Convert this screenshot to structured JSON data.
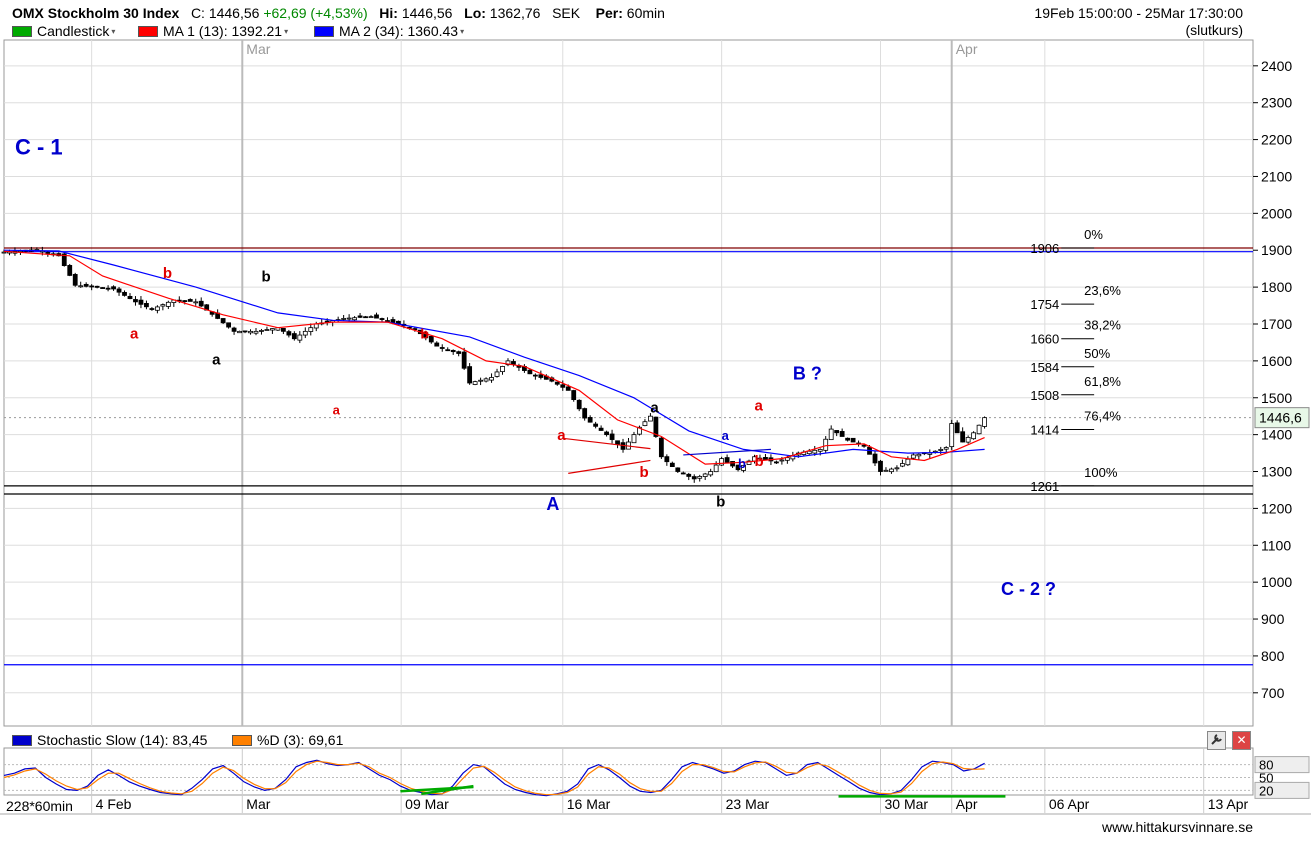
{
  "header": {
    "instrument": "OMX Stockholm 30 Index",
    "close_label": "C:",
    "close": "1446,56",
    "change": "+62,69 (+4,53%)",
    "hi_label": "Hi:",
    "hi": "1446,56",
    "lo_label": "Lo:",
    "lo": "1362,76",
    "currency": "SEK",
    "period_label": "Per:",
    "period": "60min",
    "date_range": "19Feb 15:00:00 - 25Mar 17:30:00",
    "price_basis": "(slutkurs)"
  },
  "legend": {
    "candles": "Candlestick",
    "ma1": "MA 1 (13): 1392.21",
    "ma2": "MA 2 (34): 1360.43",
    "stoch": "Stochastic Slow (14): 83,45",
    "pct_d": "%D (3): 69,61"
  },
  "footer": {
    "bars_label": "228*60min",
    "website": "www.hittakursvinnare.se"
  },
  "colors": {
    "candle_up": "#ffffff",
    "candle_down": "#000000",
    "ma1": "#ff0000",
    "ma2": "#0000ff",
    "stoch": "#0000cc",
    "pct_d": "#ff8000",
    "annotation_blue": "#0000cc",
    "annotation_red": "#e00000",
    "fib_line": "#800000",
    "divergence": "#00aa00",
    "grid": "#dddddd"
  },
  "chart_data": [
    {
      "type": "candlestick",
      "title": "OMX Stockholm 30 Index",
      "y_ticks": [
        700,
        800,
        900,
        1000,
        1100,
        1200,
        1300,
        1400,
        1500,
        1600,
        1700,
        1800,
        1900,
        2000,
        2100,
        2200,
        2300,
        2400
      ],
      "ylim": [
        610,
        2470
      ],
      "x_ticks": [
        "4 Feb",
        "Mar",
        "09 Mar",
        "16 Mar",
        "23 Mar",
        "30 Mar",
        "Apr",
        "06 Apr",
        "13 Apr"
      ],
      "top_month_labels": [
        "Mar",
        "Apr"
      ],
      "last_price_label": "1446,6",
      "grid": true,
      "price_path": [
        {
          "t": 0,
          "v": 1895
        },
        {
          "t": 6,
          "v": 1902
        },
        {
          "t": 10,
          "v": 1885
        },
        {
          "t": 13,
          "v": 1805
        },
        {
          "t": 20,
          "v": 1795
        },
        {
          "t": 24,
          "v": 1760
        },
        {
          "t": 27,
          "v": 1740
        },
        {
          "t": 31,
          "v": 1765
        },
        {
          "t": 35,
          "v": 1760
        },
        {
          "t": 39,
          "v": 1715
        },
        {
          "t": 42,
          "v": 1680
        },
        {
          "t": 46,
          "v": 1680
        },
        {
          "t": 50,
          "v": 1690
        },
        {
          "t": 53,
          "v": 1660
        },
        {
          "t": 57,
          "v": 1700
        },
        {
          "t": 62,
          "v": 1715
        },
        {
          "t": 67,
          "v": 1720
        },
        {
          "t": 72,
          "v": 1700
        },
        {
          "t": 75,
          "v": 1685
        },
        {
          "t": 79,
          "v": 1640
        },
        {
          "t": 83,
          "v": 1620
        },
        {
          "t": 85,
          "v": 1540
        },
        {
          "t": 89,
          "v": 1555
        },
        {
          "t": 92,
          "v": 1600
        },
        {
          "t": 96,
          "v": 1565
        },
        {
          "t": 100,
          "v": 1545
        },
        {
          "t": 103,
          "v": 1520
        },
        {
          "t": 106,
          "v": 1445
        },
        {
          "t": 110,
          "v": 1400
        },
        {
          "t": 113,
          "v": 1360
        },
        {
          "t": 116,
          "v": 1420
        },
        {
          "t": 118,
          "v": 1450
        },
        {
          "t": 120,
          "v": 1340
        },
        {
          "t": 123,
          "v": 1300
        },
        {
          "t": 126,
          "v": 1280
        },
        {
          "t": 129,
          "v": 1300
        },
        {
          "t": 131,
          "v": 1335
        },
        {
          "t": 134,
          "v": 1305
        },
        {
          "t": 137,
          "v": 1340
        },
        {
          "t": 141,
          "v": 1325
        },
        {
          "t": 145,
          "v": 1350
        },
        {
          "t": 149,
          "v": 1360
        },
        {
          "t": 151,
          "v": 1415
        },
        {
          "t": 154,
          "v": 1385
        },
        {
          "t": 157,
          "v": 1370
        },
        {
          "t": 160,
          "v": 1300
        },
        {
          "t": 163,
          "v": 1310
        },
        {
          "t": 166,
          "v": 1345
        },
        {
          "t": 169,
          "v": 1350
        },
        {
          "t": 172,
          "v": 1365
        },
        {
          "t": 173,
          "v": 1430
        },
        {
          "t": 175,
          "v": 1380
        },
        {
          "t": 177,
          "v": 1405
        },
        {
          "t": 179,
          "v": 1446
        }
      ],
      "ma1_path": [
        {
          "t": 0,
          "v": 1897
        },
        {
          "t": 12,
          "v": 1885
        },
        {
          "t": 18,
          "v": 1830
        },
        {
          "t": 30,
          "v": 1770
        },
        {
          "t": 40,
          "v": 1725
        },
        {
          "t": 50,
          "v": 1690
        },
        {
          "t": 60,
          "v": 1705
        },
        {
          "t": 70,
          "v": 1705
        },
        {
          "t": 80,
          "v": 1660
        },
        {
          "t": 88,
          "v": 1600
        },
        {
          "t": 95,
          "v": 1585
        },
        {
          "t": 105,
          "v": 1520
        },
        {
          "t": 112,
          "v": 1440
        },
        {
          "t": 120,
          "v": 1395
        },
        {
          "t": 128,
          "v": 1320
        },
        {
          "t": 135,
          "v": 1325
        },
        {
          "t": 142,
          "v": 1335
        },
        {
          "t": 150,
          "v": 1370
        },
        {
          "t": 157,
          "v": 1375
        },
        {
          "t": 162,
          "v": 1340
        },
        {
          "t": 168,
          "v": 1330
        },
        {
          "t": 174,
          "v": 1360
        },
        {
          "t": 179,
          "v": 1392
        }
      ],
      "ma2_path": [
        {
          "t": 0,
          "v": 1900
        },
        {
          "t": 10,
          "v": 1898
        },
        {
          "t": 20,
          "v": 1860
        },
        {
          "t": 35,
          "v": 1800
        },
        {
          "t": 50,
          "v": 1730
        },
        {
          "t": 60,
          "v": 1710
        },
        {
          "t": 70,
          "v": 1705
        },
        {
          "t": 85,
          "v": 1665
        },
        {
          "t": 95,
          "v": 1610
        },
        {
          "t": 105,
          "v": 1560
        },
        {
          "t": 115,
          "v": 1500
        },
        {
          "t": 125,
          "v": 1410
        },
        {
          "t": 135,
          "v": 1360
        },
        {
          "t": 145,
          "v": 1340
        },
        {
          "t": 155,
          "v": 1360
        },
        {
          "t": 165,
          "v": 1350
        },
        {
          "t": 172,
          "v": 1352
        },
        {
          "t": 179,
          "v": 1360
        }
      ],
      "horizontal_lines": [
        {
          "v": 1906,
          "color": "#800000"
        },
        {
          "v": 1896,
          "color": "#0000ff"
        },
        {
          "v": 1261,
          "color": "#000000"
        },
        {
          "v": 1239,
          "color": "#000000"
        },
        {
          "v": 776,
          "color": "#0000ff"
        }
      ],
      "fibonacci_levels": [
        {
          "value": 1906,
          "value_label": "1906",
          "pct_label": "0%"
        },
        {
          "value": 1754,
          "value_label": "1754",
          "pct_label": "23,6%"
        },
        {
          "value": 1660,
          "value_label": "1660",
          "pct_label": "38,2%"
        },
        {
          "value": 1584,
          "value_label": "1584",
          "pct_label": "50%"
        },
        {
          "value": 1508,
          "value_label": "1508",
          "pct_label": "61,8%"
        },
        {
          "value": 1414,
          "value_label": "1414",
          "pct_label": "76,4%"
        },
        {
          "value": 1261,
          "value_label": "1261",
          "pct_label": "100%"
        }
      ],
      "annotations": [
        {
          "text": "C - 1",
          "t": 2,
          "v": 2160,
          "color": "#0000cc",
          "size": 22
        },
        {
          "text": "b",
          "t": 29,
          "v": 1825,
          "color": "#e00000",
          "size": 15
        },
        {
          "text": "a",
          "t": 23,
          "v": 1660,
          "color": "#e00000",
          "size": 15
        },
        {
          "text": "b",
          "t": 47,
          "v": 1815,
          "color": "#000000",
          "size": 15
        },
        {
          "text": "a",
          "t": 38,
          "v": 1590,
          "color": "#000000",
          "size": 15
        },
        {
          "text": "b",
          "t": 76,
          "v": 1660,
          "color": "#e00000",
          "size": 14
        },
        {
          "text": "a",
          "t": 60,
          "v": 1455,
          "color": "#e00000",
          "size": 13
        },
        {
          "text": "a",
          "t": 101,
          "v": 1385,
          "color": "#e00000",
          "size": 15
        },
        {
          "text": "b",
          "t": 116,
          "v": 1285,
          "color": "#e00000",
          "size": 15
        },
        {
          "text": "A",
          "t": 99,
          "v": 1195,
          "color": "#0000cc",
          "size": 18
        },
        {
          "text": "a",
          "t": 118,
          "v": 1460,
          "color": "#000000",
          "size": 15
        },
        {
          "text": "b",
          "t": 130,
          "v": 1205,
          "color": "#000000",
          "size": 15
        },
        {
          "text": "a",
          "t": 131,
          "v": 1385,
          "color": "#0000cc",
          "size": 13
        },
        {
          "text": "b",
          "t": 134,
          "v": 1310,
          "color": "#0000cc",
          "size": 13
        },
        {
          "text": "a",
          "t": 137,
          "v": 1465,
          "color": "#e00000",
          "size": 15
        },
        {
          "text": "b",
          "t": 137,
          "v": 1315,
          "color": "#e00000",
          "size": 15
        },
        {
          "text": "B ?",
          "t": 144,
          "v": 1550,
          "color": "#0000cc",
          "size": 18
        },
        {
          "text": "C - 2 ?",
          "t": 182,
          "v": 965,
          "color": "#0000cc",
          "size": 18
        }
      ],
      "triangle": {
        "points": [
          {
            "t": 102,
            "v": 1390
          },
          {
            "t": 118,
            "v": 1362
          },
          {
            "t": 103,
            "v": 1295
          },
          {
            "t": 118,
            "v": 1330
          }
        ]
      },
      "support_line": [
        {
          "t": 124,
          "v": 1345
        },
        {
          "t": 140,
          "v": 1360
        }
      ]
    },
    {
      "type": "line",
      "title": "Stochastic Slow (14): 83,45",
      "y_ticks": [
        20,
        50,
        80
      ],
      "ylim": [
        0,
        100
      ],
      "series": [
        {
          "name": "Stochastic Slow (14): 83,45",
          "color": "#0000cc",
          "values": [
            55,
            60,
            70,
            72,
            50,
            35,
            22,
            20,
            30,
            55,
            68,
            55,
            40,
            30,
            22,
            15,
            12,
            10,
            25,
            45,
            70,
            78,
            60,
            40,
            28,
            20,
            25,
            45,
            75,
            85,
            90,
            82,
            78,
            80,
            85,
            70,
            55,
            45,
            30,
            20,
            15,
            10,
            12,
            30,
            60,
            80,
            75,
            55,
            35,
            22,
            15,
            10,
            8,
            12,
            18,
            35,
            70,
            80,
            68,
            50,
            30,
            18,
            15,
            20,
            45,
            75,
            85,
            78,
            70,
            60,
            65,
            80,
            88,
            85,
            70,
            55,
            60,
            80,
            85,
            70,
            55,
            40,
            25,
            15,
            10,
            12,
            20,
            45,
            75,
            88,
            85,
            80,
            65,
            70,
            83
          ]
        },
        {
          "name": "%D (3): 69,61",
          "color": "#ff8000",
          "values": [
            50,
            56,
            65,
            70,
            58,
            42,
            30,
            22,
            26,
            45,
            60,
            60,
            48,
            36,
            26,
            18,
            14,
            12,
            18,
            36,
            60,
            74,
            66,
            48,
            34,
            24,
            24,
            38,
            64,
            80,
            88,
            85,
            80,
            80,
            83,
            75,
            60,
            50,
            36,
            25,
            18,
            13,
            12,
            22,
            48,
            72,
            76,
            62,
            44,
            28,
            19,
            13,
            10,
            11,
            15,
            28,
            58,
            75,
            72,
            58,
            38,
            24,
            18,
            18,
            36,
            64,
            80,
            80,
            73,
            64,
            63,
            75,
            84,
            86,
            76,
            62,
            60,
            73,
            82,
            76,
            62,
            48,
            32,
            20,
            13,
            12,
            16,
            36,
            64,
            82,
            86,
            82,
            71,
            69,
            70
          ]
        }
      ],
      "divergence_lines": [
        {
          "from": {
            "i": 40,
            "v": 12
          },
          "to": {
            "i": 45,
            "v": 30
          }
        },
        {
          "from": {
            "i": 38,
            "v": 18
          },
          "to": {
            "i": 45,
            "v": 28
          }
        },
        {
          "from": {
            "i": 80,
            "v": 6
          },
          "to": {
            "i": 96,
            "v": 6
          }
        }
      ]
    }
  ]
}
